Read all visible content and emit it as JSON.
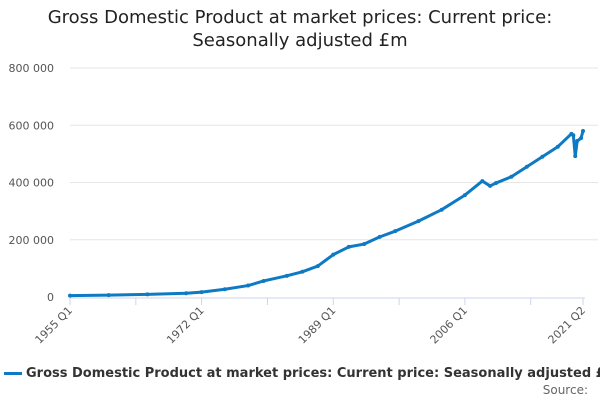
{
  "chart_data": {
    "type": "line",
    "title": "Gross Domestic Product at market prices: Current price: Seasonally adjusted £m",
    "xlabel": "",
    "ylabel": "",
    "ylim": [
      0,
      800000
    ],
    "yticks": [
      "0",
      "200 000",
      "400 000",
      "600 000",
      "800 000"
    ],
    "yticks_values": [
      0,
      200000,
      400000,
      600000,
      800000
    ],
    "xticks": [
      "1955 Q1",
      "1972 Q1",
      "1989 Q1",
      "2006 Q1",
      "2021 Q2"
    ],
    "grid": true,
    "legend_placement": "bottom",
    "color": "#0e7ac4",
    "series": [
      {
        "name": "Gross Domestic Product at market prices: Current price: Seasonally adjusted £m",
        "x": [
          "1955 Q1",
          "1960 Q1",
          "1965 Q1",
          "1970 Q1",
          "1972 Q1",
          "1975 Q1",
          "1978 Q1",
          "1980 Q1",
          "1983 Q1",
          "1985 Q1",
          "1987 Q1",
          "1989 Q1",
          "1991 Q1",
          "1993 Q1",
          "1995 Q1",
          "1997 Q1",
          "2000 Q1",
          "2003 Q1",
          "2006 Q1",
          "2008 Q2",
          "2009 Q2",
          "2010 Q1",
          "2012 Q1",
          "2014 Q1",
          "2016 Q1",
          "2018 Q1",
          "2019 Q4",
          "2020 Q1",
          "2020 Q2",
          "2020 Q3",
          "2021 Q1",
          "2021 Q2"
        ],
        "values": [
          5000,
          6500,
          9000,
          13000,
          17000,
          27000,
          40000,
          56000,
          74000,
          88000,
          108000,
          148000,
          175000,
          185000,
          210000,
          230000,
          265000,
          305000,
          356000,
          405000,
          388000,
          398000,
          420000,
          455000,
          490000,
          525000,
          570000,
          565000,
          492000,
          545000,
          555000,
          580000
        ]
      }
    ]
  },
  "source_label": "Source:"
}
